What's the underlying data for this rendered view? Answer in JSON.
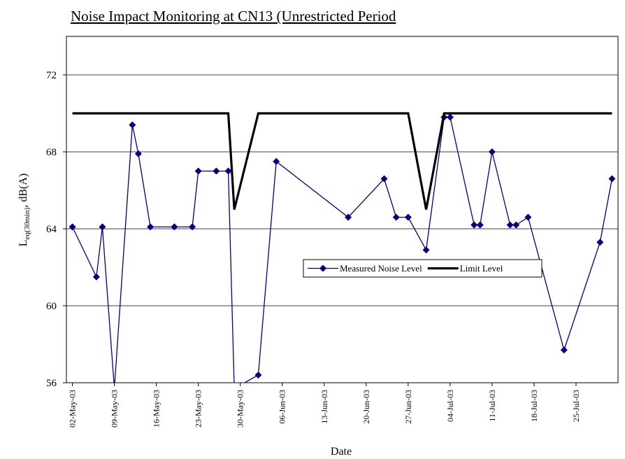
{
  "chart_data": {
    "type": "line",
    "title": "Noise Impact Monitoring at CN13 (Unrestricted Period",
    "x_label": "Date",
    "y_label": {
      "main": "L",
      "sub": "eq(30min)",
      "rest": ", dB(A)"
    },
    "xlim": [
      "2003-05-01",
      "2003-08-01"
    ],
    "xticks": [
      {
        "value": "2003-05-02",
        "label": "02-May-03"
      },
      {
        "value": "2003-05-09",
        "label": "09-May-03"
      },
      {
        "value": "2003-05-16",
        "label": "16-May-03"
      },
      {
        "value": "2003-05-23",
        "label": "23-May-03"
      },
      {
        "value": "2003-05-30",
        "label": "30-May-03"
      },
      {
        "value": "2003-06-06",
        "label": "06-Jun-03"
      },
      {
        "value": "2003-06-13",
        "label": "13-Jun-03"
      },
      {
        "value": "2003-06-20",
        "label": "20-Jun-03"
      },
      {
        "value": "2003-06-27",
        "label": "27-Jun-03"
      },
      {
        "value": "2003-07-04",
        "label": "04-Jul-03"
      },
      {
        "value": "2003-07-11",
        "label": "11-Jul-03"
      },
      {
        "value": "2003-07-18",
        "label": "18-Jul-03"
      },
      {
        "value": "2003-07-25",
        "label": "25-Jul-03"
      }
    ],
    "ylim": [
      56,
      74
    ],
    "yticks": [
      56,
      60,
      64,
      68,
      72
    ],
    "grid": true,
    "series": [
      {
        "name": "Measured Noise Level",
        "color": "#000080",
        "marker": "diamond",
        "x": [
          "2003-05-02",
          "2003-05-06",
          "2003-05-07",
          "2003-05-09",
          "2003-05-12",
          "2003-05-13",
          "2003-05-15",
          "2003-05-19",
          "2003-05-22",
          "2003-05-23",
          "2003-05-26",
          "2003-05-28",
          "2003-05-29",
          "2003-06-02",
          "2003-06-05",
          "2003-06-17",
          "2003-06-23",
          "2003-06-25",
          "2003-06-27",
          "2003-06-30",
          "2003-07-03",
          "2003-07-04",
          "2003-07-08",
          "2003-07-09",
          "2003-07-11",
          "2003-07-14",
          "2003-07-15",
          "2003-07-17",
          "2003-07-23",
          "2003-07-29",
          "2003-07-31"
        ],
        "values": [
          64.1,
          61.5,
          64.1,
          55.7,
          69.4,
          67.9,
          64.1,
          64.1,
          64.1,
          67.0,
          67.0,
          67.0,
          55.7,
          56.4,
          67.5,
          64.6,
          66.6,
          64.6,
          64.6,
          62.9,
          69.8,
          69.8,
          64.2,
          64.2,
          68.0,
          64.2,
          64.2,
          64.6,
          57.7,
          63.3,
          66.6
        ]
      },
      {
        "name": "Limit Level",
        "color": "#000000",
        "marker": "none",
        "x": [
          "2003-05-02",
          "2003-05-28",
          "2003-05-29",
          "2003-06-02",
          "2003-06-27",
          "2003-06-30",
          "2003-07-03",
          "2003-07-31"
        ],
        "values": [
          70,
          70,
          65,
          70,
          70,
          65,
          70,
          70
        ]
      }
    ]
  }
}
